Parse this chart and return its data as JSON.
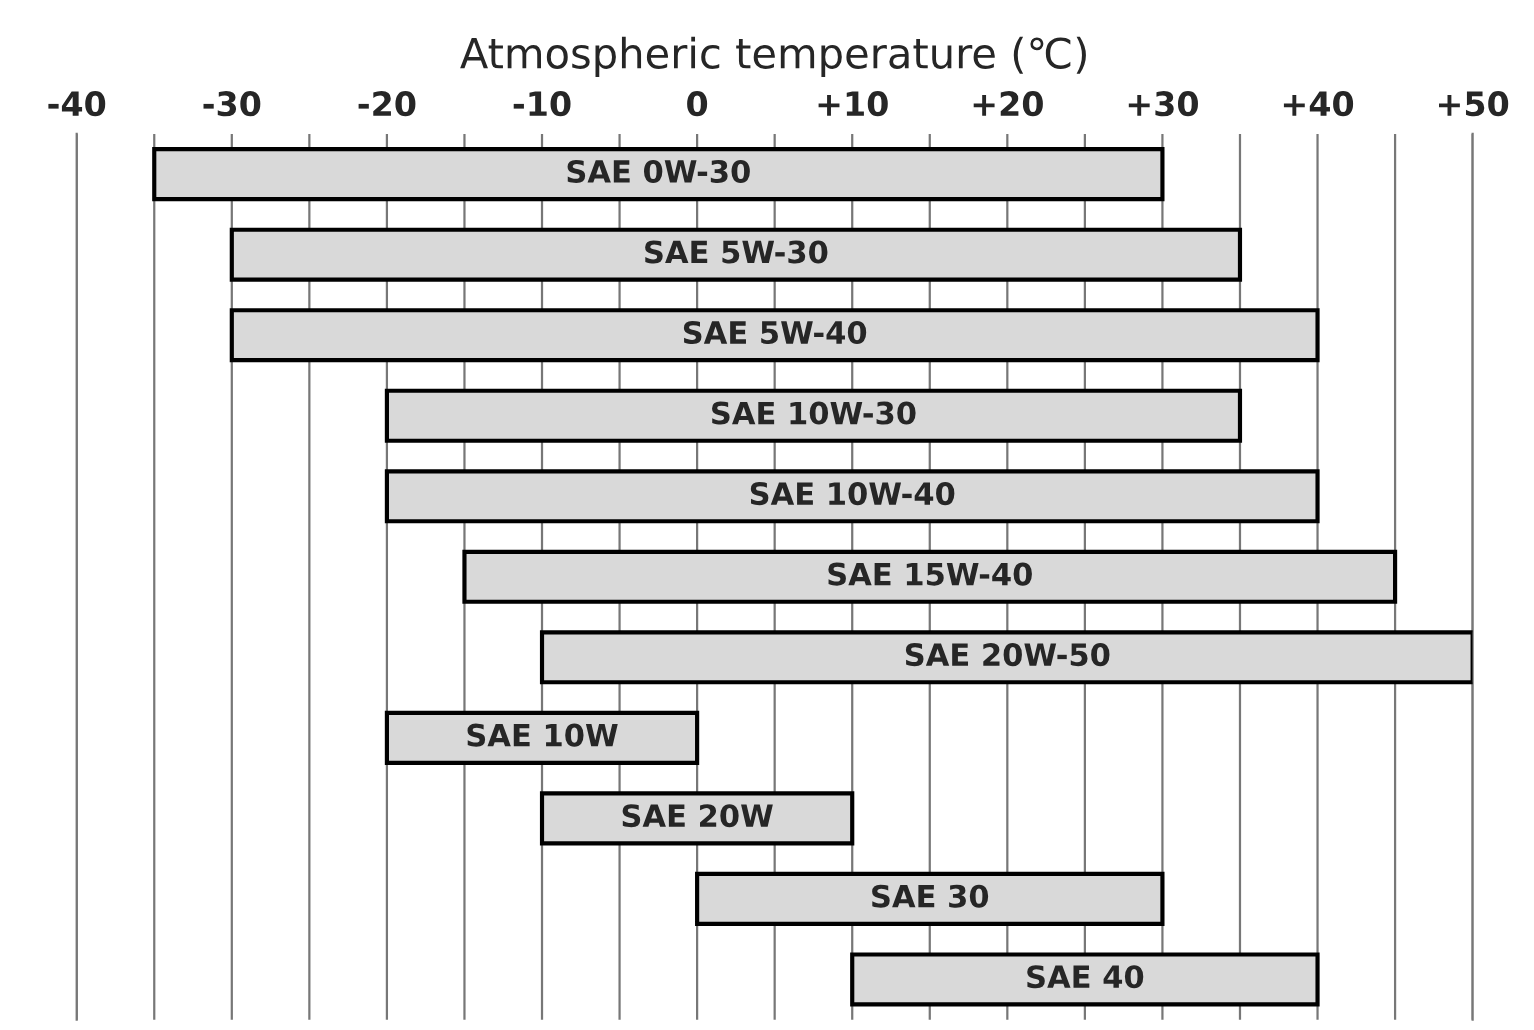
{
  "chart_data": {
    "type": "bar",
    "orientation": "horizontal",
    "xlabel": "Atmospheric temperature (℃)",
    "categories": [
      "SAE 0W-30",
      "SAE 5W-30",
      "SAE 5W-40",
      "SAE 10W-30",
      "SAE 10W-40",
      "SAE 15W-40",
      "SAE 20W-50",
      "SAE 10W",
      "SAE 20W",
      "SAE 30",
      "SAE 40"
    ],
    "base": [
      -35,
      -30,
      -30,
      -20,
      -20,
      -15,
      -10,
      -20,
      -10,
      0,
      10
    ],
    "values": [
      65,
      65,
      70,
      55,
      60,
      60,
      60,
      20,
      20,
      30,
      30
    ],
    "color": "#d9d9d9",
    "xlim": [
      -40,
      50
    ],
    "xticks": [
      -40,
      {
        "value": -35,
        "label": null
      },
      -30,
      {
        "value": -25,
        "label": null
      },
      -20,
      {
        "value": -15,
        "label": null
      },
      -10,
      {
        "value": -5,
        "label": null
      },
      0,
      {
        "value": 5,
        "label": null
      },
      {
        "value": 10,
        "label": "+10"
      },
      {
        "value": 15,
        "label": null
      },
      {
        "value": 20,
        "label": "+20"
      },
      {
        "value": 25,
        "label": null
      },
      {
        "value": 30,
        "label": "+30"
      },
      {
        "value": 35,
        "label": null
      },
      {
        "value": 40,
        "label": "+40"
      },
      {
        "value": 45,
        "label": null
      },
      {
        "value": 50,
        "label": "+50"
      }
    ],
    "grid": "x",
    "tick_labels": "x"
  }
}
